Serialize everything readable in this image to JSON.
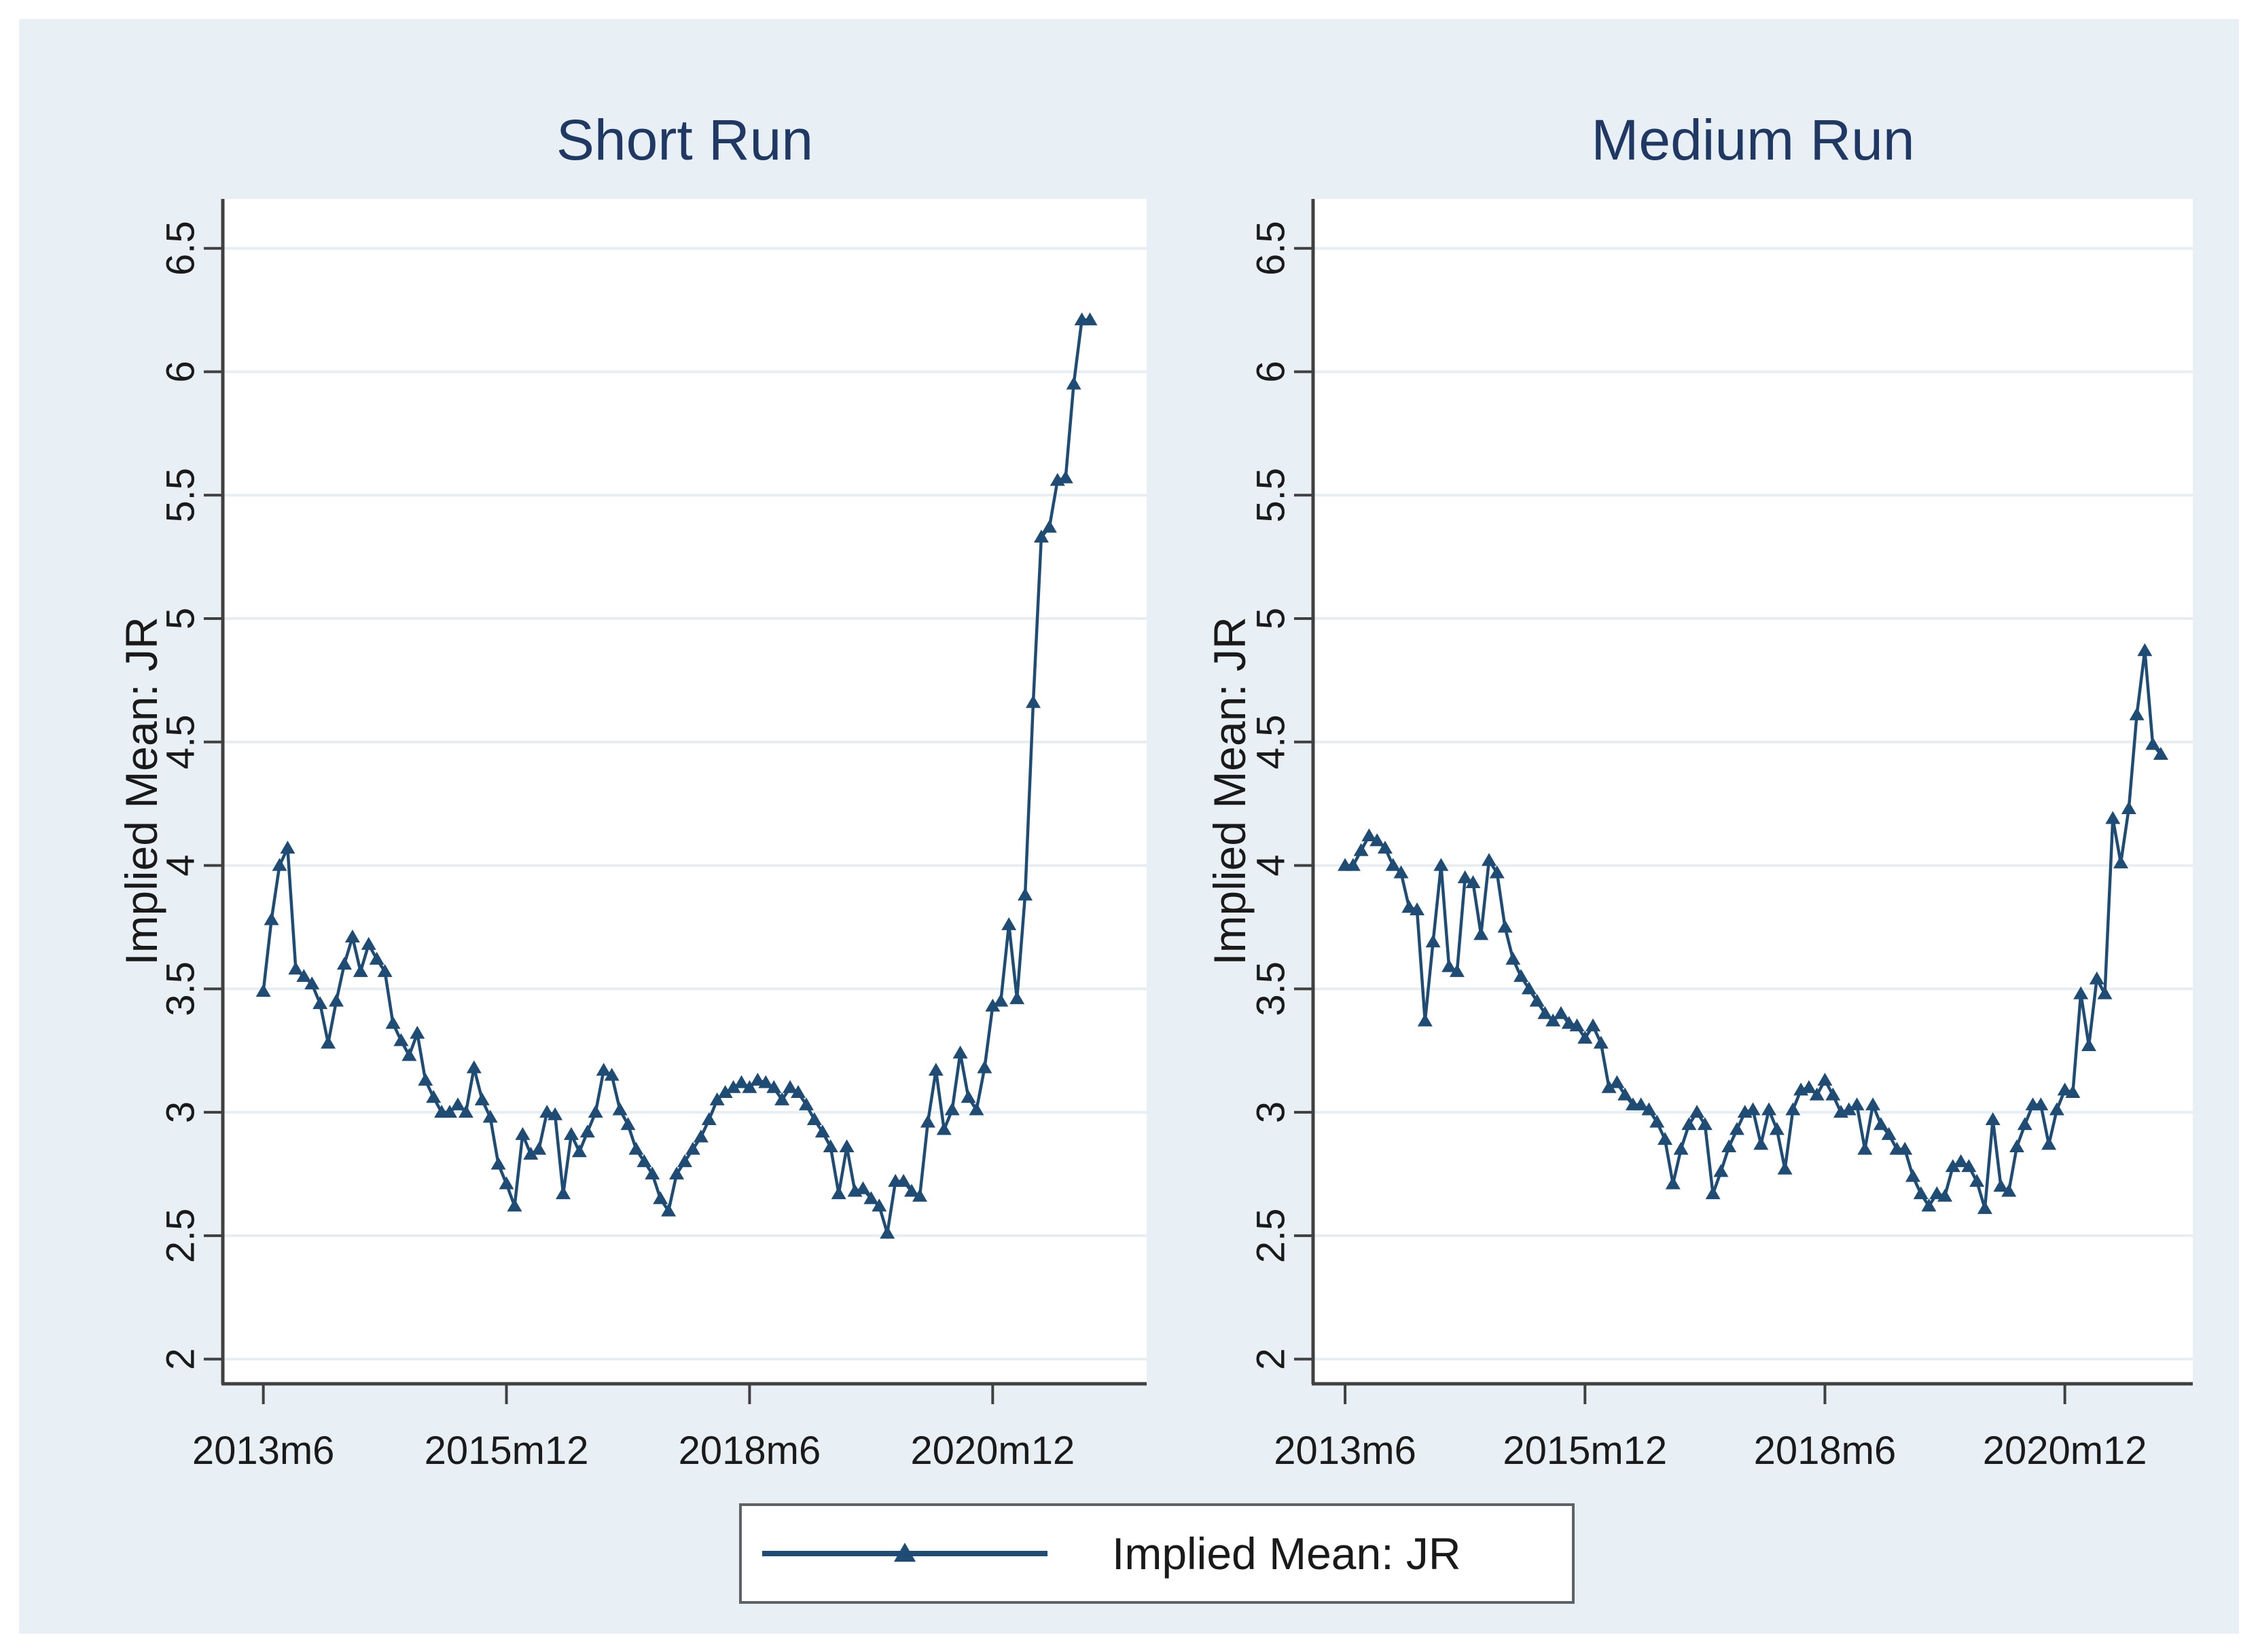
{
  "legend": {
    "label": "Implied Mean: JR"
  },
  "colors": {
    "page_background": "#ffffff",
    "figure_background": "#e9f0f5",
    "plot_background": "#ffffff",
    "gridline": "#e7eef2",
    "axis": "#404040",
    "series": "#1e4c74",
    "title_text": "#1f3864",
    "tick_text": "#1a1a1a",
    "legend_border": "#5f6264"
  },
  "chart_data": [
    {
      "type": "line",
      "title": "Short Run",
      "xlabel": "",
      "ylabel": "Implied Mean: JR",
      "marker": "triangle-up",
      "x_start": "2013m6",
      "x_frequency": "monthly",
      "x_tick_labels": [
        "2013m6",
        "2015m12",
        "2018m6",
        "2020m12"
      ],
      "x_tick_months": [
        0,
        30,
        60,
        90
      ],
      "xlim_months": [
        -5,
        109
      ],
      "y_tick_labels": [
        "2",
        "2.5",
        "3",
        "3.5",
        "4",
        "4.5",
        "5",
        "5.5",
        "6",
        "6.5"
      ],
      "y_ticks": [
        2,
        2.5,
        3,
        3.5,
        4,
        4.5,
        5,
        5.5,
        6,
        6.5
      ],
      "ylim": [
        1.9,
        6.7
      ],
      "grid": "horizontal",
      "legend_position": "bottom-center",
      "series": [
        {
          "name": "Implied Mean: JR",
          "values": [
            3.49,
            3.78,
            4.0,
            4.07,
            3.58,
            3.55,
            3.52,
            3.44,
            3.28,
            3.45,
            3.6,
            3.71,
            3.57,
            3.68,
            3.62,
            3.57,
            3.36,
            3.29,
            3.23,
            3.32,
            3.13,
            3.06,
            3.0,
            3.0,
            3.03,
            3.0,
            3.18,
            3.05,
            2.98,
            2.79,
            2.71,
            2.62,
            2.91,
            2.83,
            2.85,
            3.0,
            2.99,
            2.67,
            2.91,
            2.84,
            2.92,
            3.0,
            3.17,
            3.15,
            3.01,
            2.95,
            2.85,
            2.8,
            2.75,
            2.65,
            2.6,
            2.75,
            2.8,
            2.85,
            2.9,
            2.97,
            3.05,
            3.08,
            3.1,
            3.12,
            3.1,
            3.13,
            3.12,
            3.1,
            3.05,
            3.1,
            3.08,
            3.03,
            2.97,
            2.92,
            2.86,
            2.67,
            2.86,
            2.68,
            2.69,
            2.65,
            2.62,
            2.51,
            2.72,
            2.72,
            2.68,
            2.66,
            2.96,
            3.17,
            2.93,
            3.01,
            3.24,
            3.06,
            3.01,
            3.18,
            3.43,
            3.45,
            3.76,
            3.46,
            3.88,
            4.66,
            5.33,
            5.37,
            5.56,
            5.57,
            5.95,
            6.21,
            6.21
          ]
        }
      ]
    },
    {
      "type": "line",
      "title": "Medium Run",
      "xlabel": "",
      "ylabel": "Implied Mean: JR",
      "marker": "triangle-up",
      "x_start": "2013m6",
      "x_frequency": "monthly",
      "x_tick_labels": [
        "2013m6",
        "2015m12",
        "2018m6",
        "2020m12"
      ],
      "x_tick_months": [
        0,
        30,
        60,
        90
      ],
      "xlim_months": [
        -4,
        106
      ],
      "y_tick_labels": [
        "2",
        "2.5",
        "3",
        "3.5",
        "4",
        "4.5",
        "5",
        "5.5",
        "6",
        "6.5"
      ],
      "y_ticks": [
        2,
        2.5,
        3,
        3.5,
        4,
        4.5,
        5,
        5.5,
        6,
        6.5
      ],
      "ylim": [
        1.9,
        6.7
      ],
      "grid": "horizontal",
      "legend_position": "bottom-center",
      "series": [
        {
          "name": "Implied Mean: JR",
          "values": [
            4.0,
            4.0,
            4.06,
            4.12,
            4.1,
            4.07,
            4.0,
            3.97,
            3.83,
            3.82,
            3.37,
            3.69,
            4.0,
            3.59,
            3.57,
            3.95,
            3.93,
            3.72,
            4.02,
            3.97,
            3.75,
            3.62,
            3.55,
            3.5,
            3.45,
            3.4,
            3.37,
            3.4,
            3.36,
            3.35,
            3.3,
            3.35,
            3.28,
            3.1,
            3.12,
            3.07,
            3.03,
            3.03,
            3.01,
            2.96,
            2.89,
            2.71,
            2.85,
            2.95,
            3.0,
            2.95,
            2.67,
            2.76,
            2.86,
            2.93,
            3.0,
            3.01,
            2.87,
            3.01,
            2.93,
            2.77,
            3.01,
            3.09,
            3.1,
            3.07,
            3.13,
            3.07,
            3.0,
            3.01,
            3.03,
            2.85,
            3.03,
            2.95,
            2.91,
            2.85,
            2.85,
            2.74,
            2.67,
            2.62,
            2.67,
            2.66,
            2.78,
            2.8,
            2.78,
            2.72,
            2.61,
            2.97,
            2.7,
            2.68,
            2.86,
            2.95,
            3.03,
            3.03,
            2.87,
            3.01,
            3.09,
            3.08,
            3.48,
            3.27,
            3.54,
            3.48,
            4.19,
            4.01,
            4.23,
            4.61,
            4.87,
            4.49,
            4.45
          ]
        }
      ]
    }
  ]
}
